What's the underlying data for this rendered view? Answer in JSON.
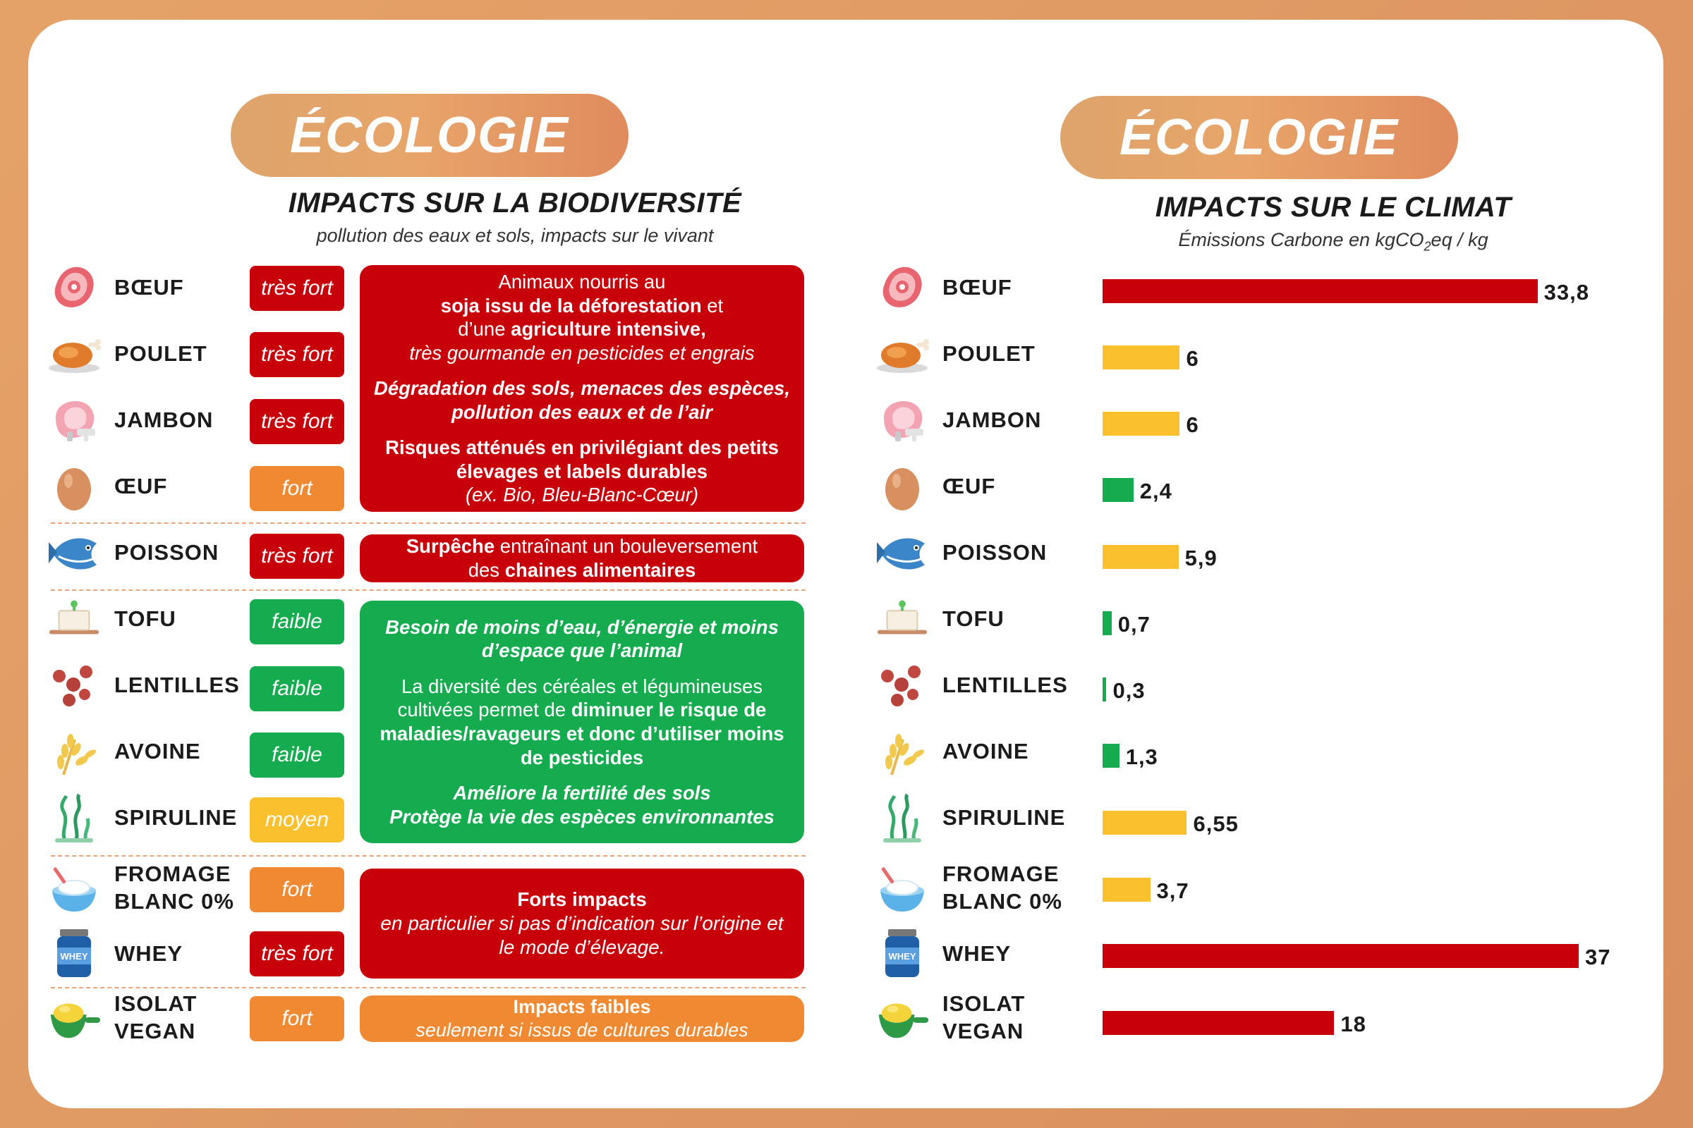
{
  "left_panel": {
    "badge": "ÉCOLOGIE",
    "title": "IMPACTS SUR LA BIODIVERSITÉ",
    "subtitle": "pollution des eaux et sols, impacts sur le vivant"
  },
  "right_panel": {
    "badge": "ÉCOLOGIE",
    "title": "IMPACTS SUR LE CLIMAT",
    "subtitle_prefix": "Émissions Carbone en kgCO",
    "subtitle_sub": "2",
    "subtitle_suffix": "eq / kg"
  },
  "foods": [
    {
      "label": "BŒUF",
      "icon": "steak-icon",
      "level": "très fort",
      "level_color": "#c8000a"
    },
    {
      "label": "POULET",
      "icon": "roast-chicken-icon",
      "level": "très fort",
      "level_color": "#c8000a"
    },
    {
      "label": "JAMBON",
      "icon": "ham-icon",
      "level": "très fort",
      "level_color": "#c8000a"
    },
    {
      "label": "ŒUF",
      "icon": "egg-icon",
      "level": "fort",
      "level_color": "#f08a32"
    },
    {
      "label": "POISSON",
      "icon": "fish-icon",
      "level": "très fort",
      "level_color": "#c8000a"
    },
    {
      "label": "TOFU",
      "icon": "tofu-icon",
      "level": "faible",
      "level_color": "#14ac4f"
    },
    {
      "label": "LENTILLES",
      "icon": "lentils-icon",
      "level": "faible",
      "level_color": "#14ac4f"
    },
    {
      "label": "AVOINE",
      "icon": "oat-icon",
      "level": "faible",
      "level_color": "#14ac4f"
    },
    {
      "label": "SPIRULINE",
      "icon": "seaweed-icon",
      "level": "moyen",
      "level_color": "#fbc02d"
    },
    {
      "label": "FROMAGE\nBLANC 0%",
      "icon": "cottage-cheese-bowl-icon",
      "level": "fort",
      "level_color": "#f08a32"
    },
    {
      "label": "WHEY",
      "icon": "whey-jar-icon",
      "level": "très fort",
      "level_color": "#c8000a"
    },
    {
      "label": "ISOLAT\nVEGAN",
      "icon": "protein-scoop-icon",
      "level": "fort",
      "level_color": "#f08a32"
    }
  ],
  "descriptions": [
    {
      "color": "#c8000a",
      "paragraphs": [
        [
          {
            "t": "Animaux nourris au",
            "s": ""
          },
          {
            "t": "\n",
            "s": ""
          },
          {
            "t": "soja issu de la déforestation",
            "s": "bold"
          },
          {
            "t": " et",
            "s": ""
          },
          {
            "t": "\n",
            "s": ""
          },
          {
            "t": "d’une ",
            "s": ""
          },
          {
            "t": "agriculture intensive,",
            "s": "bold"
          },
          {
            "t": "\n",
            "s": ""
          },
          {
            "t": "très gourmande en pesticides et engrais",
            "s": "it"
          }
        ],
        [
          {
            "t": "Dégradation des sols, menaces des espèces, pollution des eaux et de l’air",
            "s": "bi"
          }
        ],
        [
          {
            "t": "Risques atténués en privilégiant des petits élevages et labels durables",
            "s": "bold"
          },
          {
            "t": "\n",
            "s": ""
          },
          {
            "t": "(ex. Bio, Bleu-Blanc-Cœur)",
            "s": "it"
          }
        ]
      ]
    },
    {
      "color": "#c8000a",
      "paragraphs": [
        [
          {
            "t": "Surpêche",
            "s": "bold"
          },
          {
            "t": " entraînant un bouleversement",
            "s": ""
          },
          {
            "t": "\n",
            "s": ""
          },
          {
            "t": "des ",
            "s": ""
          },
          {
            "t": "chaines alimentaires",
            "s": "bold"
          }
        ]
      ]
    },
    {
      "color": "#14ac4f",
      "paragraphs": [
        [
          {
            "t": "Besoin de moins d’eau, d’énergie et moins d’espace que l’animal",
            "s": "bi"
          }
        ],
        [
          {
            "t": "La diversité des céréales et légumineuses cultivées permet de ",
            "s": ""
          },
          {
            "t": "diminuer le risque de maladies/ravageurs et donc d’utiliser moins de pesticides",
            "s": "bold"
          }
        ],
        [
          {
            "t": "Améliore la fertilité des sols",
            "s": "bi"
          },
          {
            "t": "\n",
            "s": ""
          },
          {
            "t": "Protège la vie des espèces environnantes",
            "s": "bi"
          }
        ]
      ]
    },
    {
      "color": "#c8000a",
      "paragraphs": [
        [
          {
            "t": "Forts impacts",
            "s": "bold"
          },
          {
            "t": "\n",
            "s": ""
          },
          {
            "t": "en particulier si pas d’indication sur l’origine et le mode d’élevage.",
            "s": "it"
          }
        ]
      ]
    },
    {
      "color": "#f08a32",
      "paragraphs": [
        [
          {
            "t": "Impacts faibles",
            "s": "bold"
          },
          {
            "t": "\n",
            "s": ""
          },
          {
            "t": "seulement si issus de cultures durables",
            "s": "it"
          }
        ]
      ]
    }
  ],
  "chart_data": {
    "type": "bar",
    "orientation": "horizontal",
    "title": "IMPACTS SUR LE CLIMAT",
    "categories": [
      "BŒUF",
      "POULET",
      "JAMBON",
      "ŒUF",
      "POISSON",
      "TOFU",
      "LENTILLES",
      "AVOINE",
      "SPIRULINE",
      "FROMAGE BLANC 0%",
      "WHEY",
      "ISOLAT VEGAN"
    ],
    "values": [
      33.8,
      6,
      6,
      2.4,
      5.9,
      0.7,
      0.3,
      1.3,
      6.55,
      3.7,
      37,
      18
    ],
    "value_labels": [
      "33,8",
      "6",
      "6",
      "2,4",
      "5,9",
      "0,7",
      "0,3",
      "1,3",
      "6,55",
      "3,7",
      "37",
      "18"
    ],
    "bar_colors": [
      "#c8000a",
      "#fbc02d",
      "#fbc02d",
      "#14ac4f",
      "#fbc02d",
      "#14ac4f",
      "#14ac4f",
      "#14ac4f",
      "#fbc02d",
      "#fbc02d",
      "#c8000a",
      "#c8000a"
    ],
    "xlim": [
      0,
      37
    ],
    "grid": false,
    "legend": "none"
  }
}
